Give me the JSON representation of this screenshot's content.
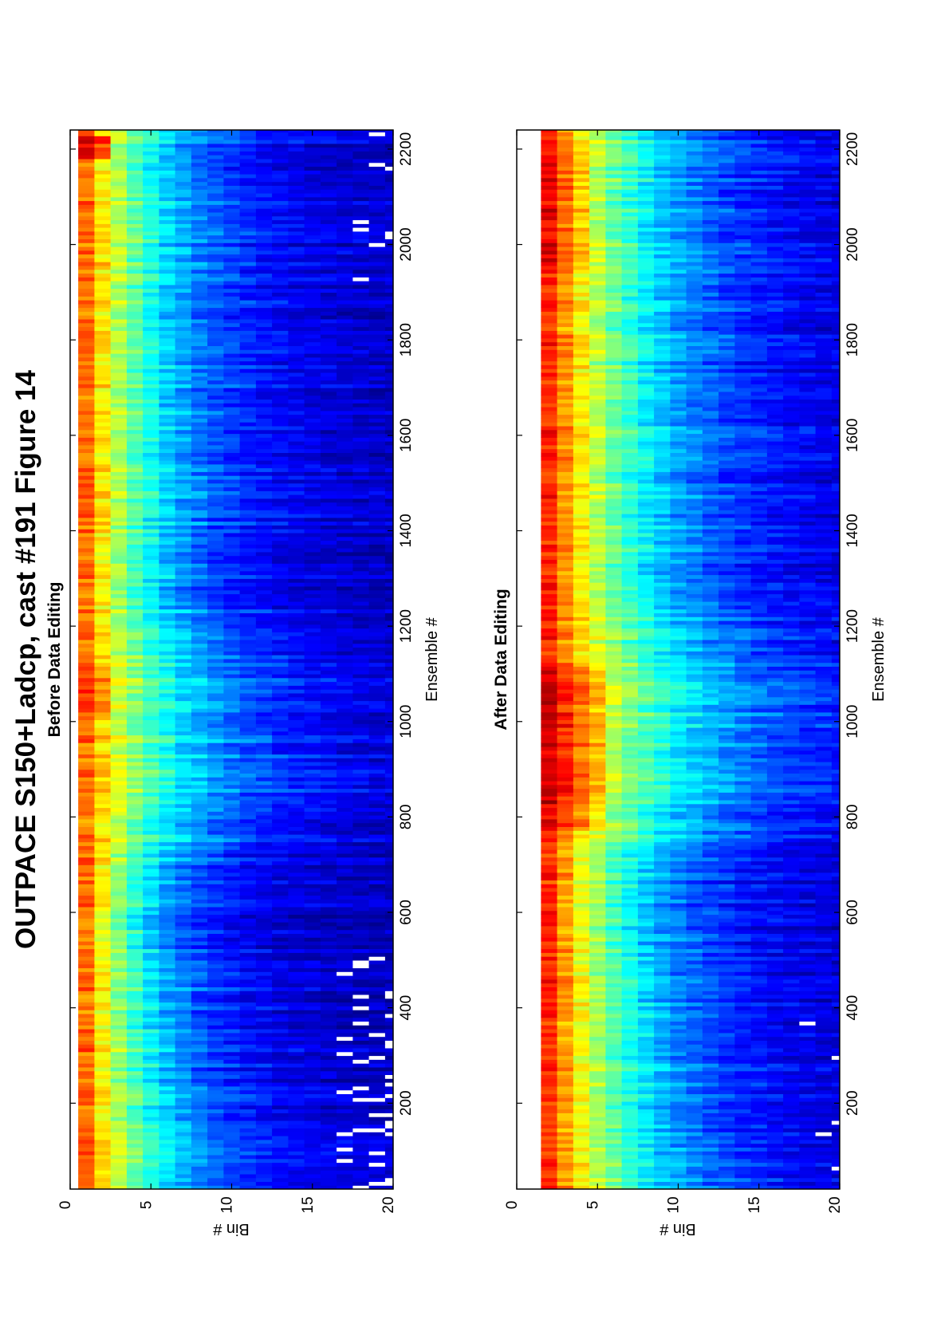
{
  "title": "OUTPACE S150+Ladcp, cast #191  Figure 14",
  "colormap": [
    "#00008f",
    "#0000ff",
    "#0080ff",
    "#00ffff",
    "#80ff80",
    "#ffff00",
    "#ff8000",
    "#ff0000",
    "#800000"
  ],
  "chart_data": [
    {
      "type": "heatmap",
      "title": "Before Data Editing",
      "xlabel": "Ensemble #",
      "ylabel": "Bin #",
      "xlim": [
        20,
        2240
      ],
      "ylim": [
        0,
        20
      ],
      "xticks": [
        200,
        400,
        600,
        800,
        1000,
        1200,
        1400,
        1600,
        1800,
        2000,
        2200
      ],
      "yticks": [
        0,
        5,
        10,
        15,
        20
      ],
      "first_bin": 1,
      "profile_ensembles": [
        20,
        150,
        300,
        500,
        600,
        700,
        760,
        900,
        1000,
        1100,
        1200,
        1280,
        1400,
        1600,
        1800,
        2000,
        2200,
        2240
      ],
      "profile_decay_bins": [
        6.5,
        6.5,
        6,
        5.5,
        5,
        5.5,
        7.5,
        8.5,
        8.5,
        8.5,
        7,
        6,
        6.5,
        6.5,
        6.5,
        6.5,
        6.5,
        6.5
      ],
      "surface_intensity": 0.77,
      "floor_intensity": 0.04,
      "surface_intensity_bands": [
        {
          "x": [
            1000,
            1110
          ],
          "bin": [
            1,
            2
          ],
          "add": 0.06
        },
        {
          "x": [
            2180,
            2220
          ],
          "bin": [
            1,
            2
          ],
          "add": 0.15
        }
      ],
      "gaps": [
        {
          "x": [
            20,
            500
          ],
          "bin": [
            17,
            20
          ],
          "density": 0.16
        },
        {
          "x": [
            1900,
            2240
          ],
          "bin": [
            18,
            20
          ],
          "density": 0.06
        }
      ]
    },
    {
      "type": "heatmap",
      "title": "After Data Editing",
      "xlabel": "Ensemble #",
      "ylabel": "Bin #",
      "xlim": [
        20,
        2240
      ],
      "ylim": [
        0,
        20
      ],
      "xticks": [
        200,
        400,
        600,
        800,
        1000,
        1200,
        1400,
        1600,
        1800,
        2000,
        2200
      ],
      "yticks": [
        0,
        5,
        10,
        15,
        20
      ],
      "first_bin": 2,
      "profile_ensembles": [
        20,
        150,
        300,
        500,
        600,
        700,
        760,
        900,
        1000,
        1100,
        1200,
        1280,
        1400,
        1600,
        1800,
        2000,
        2200,
        2240
      ],
      "profile_decay_bins": [
        8,
        8,
        7.5,
        7,
        6.5,
        7,
        9.5,
        10.5,
        10.5,
        10.5,
        9,
        7.5,
        8,
        8,
        8,
        8,
        8,
        8
      ],
      "surface_intensity": 0.84,
      "floor_intensity": 0.04,
      "surface_intensity_bands": [
        {
          "x": [
            780,
            1110
          ],
          "bin": [
            2,
            5
          ],
          "add": 0.08
        },
        {
          "x": [
            1950,
            2170
          ],
          "bin": [
            2,
            4
          ],
          "add": 0.05
        }
      ],
      "gaps": [
        {
          "x": [
            20,
            400
          ],
          "bin": [
            18,
            20
          ],
          "density": 0.03
        }
      ]
    }
  ]
}
